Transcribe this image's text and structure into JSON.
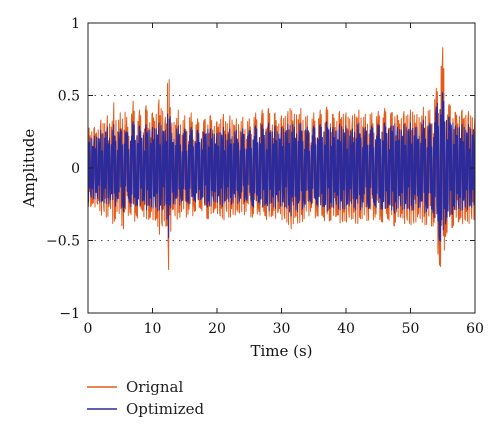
{
  "chart_data": {
    "type": "line",
    "title": "",
    "xlabel": "Time (s)",
    "ylabel": "Amplitude",
    "xlim": [
      0,
      60
    ],
    "ylim": [
      -1,
      1
    ],
    "x_ticks": [
      0,
      10,
      20,
      30,
      40,
      50,
      60
    ],
    "x_tick_labels": [
      "0",
      "10",
      "20",
      "30",
      "40",
      "50",
      "60"
    ],
    "y_ticks": [
      -1,
      -0.5,
      0,
      0.5,
      1
    ],
    "y_tick_labels": [
      "−1",
      "−0.5",
      "0",
      "0.5",
      "1"
    ],
    "grid": "dotted horizontal lines at 0.5 and -0.5",
    "legend_position": "bottom-left, below plot",
    "series": [
      {
        "name": "Orignal",
        "color": "#e35b1c",
        "x": [
          0,
          0.5,
          1,
          1.5,
          2,
          2.5,
          3,
          3.5,
          4,
          4.5,
          5,
          5.5,
          6,
          6.5,
          7,
          7.5,
          8,
          8.5,
          9,
          9.5,
          10,
          10.5,
          11,
          11.5,
          12,
          12.5,
          13,
          13.5,
          14,
          14.5,
          15,
          15.5,
          16,
          16.5,
          17,
          17.5,
          18,
          18.5,
          19,
          19.5,
          20,
          20.5,
          21,
          21.5,
          22,
          22.5,
          23,
          23.5,
          24,
          24.5,
          25,
          25.5,
          26,
          26.5,
          27,
          27.5,
          28,
          28.5,
          29,
          29.5,
          30,
          30.5,
          31,
          31.5,
          32,
          32.5,
          33,
          33.5,
          34,
          34.5,
          35,
          35.5,
          36,
          36.5,
          37,
          37.5,
          38,
          38.5,
          39,
          39.5,
          40,
          40.5,
          41,
          41.5,
          42,
          42.5,
          43,
          43.5,
          44,
          44.5,
          45,
          45.5,
          46,
          46.5,
          47,
          47.5,
          48,
          48.5,
          49,
          49.5,
          50,
          50.5,
          51,
          51.5,
          52,
          52.5,
          53,
          53.5,
          54,
          54.5,
          55,
          55.5,
          56,
          56.5,
          57,
          57.5,
          58,
          58.5,
          59,
          59.5,
          60
        ],
        "y": [
          0.3,
          -0.26,
          0.28,
          -0.25,
          0.33,
          -0.3,
          0.36,
          -0.28,
          0.45,
          -0.3,
          0.38,
          -0.42,
          0.35,
          -0.31,
          0.46,
          -0.33,
          0.4,
          -0.29,
          0.43,
          -0.34,
          0.38,
          -0.36,
          0.47,
          -0.4,
          0.35,
          -0.7,
          0.31,
          -0.33,
          0.4,
          -0.3,
          0.36,
          -0.32,
          0.38,
          -0.3,
          0.34,
          -0.28,
          0.33,
          -0.35,
          0.36,
          -0.3,
          0.32,
          -0.33,
          0.37,
          -0.3,
          0.36,
          -0.32,
          0.34,
          -0.31,
          0.35,
          -0.3,
          0.34,
          -0.34,
          0.38,
          -0.3,
          0.4,
          -0.33,
          0.41,
          -0.32,
          0.38,
          -0.3,
          0.36,
          -0.35,
          0.39,
          -0.42,
          0.37,
          -0.38,
          0.41,
          -0.35,
          0.36,
          -0.3,
          0.38,
          -0.33,
          0.4,
          -0.34,
          0.42,
          -0.36,
          0.37,
          -0.33,
          0.39,
          -0.37,
          0.38,
          -0.34,
          0.36,
          -0.38,
          0.4,
          -0.35,
          0.37,
          -0.36,
          0.38,
          -0.34,
          0.39,
          -0.37,
          0.41,
          -0.35,
          0.38,
          -0.4,
          0.36,
          -0.34,
          0.39,
          -0.36,
          0.4,
          -0.38,
          0.37,
          -0.35,
          0.42,
          -0.39,
          0.4,
          -0.4,
          0.55,
          -0.67,
          0.83,
          -0.45,
          0.44,
          -0.41,
          0.38,
          -0.37,
          0.4,
          -0.36,
          0.39,
          -0.35,
          0.36
        ]
      },
      {
        "name": "Optimized",
        "color": "#2d2a9b",
        "x": [
          0,
          0.5,
          1,
          1.5,
          2,
          2.5,
          3,
          3.5,
          4,
          4.5,
          5,
          5.5,
          6,
          6.5,
          7,
          7.5,
          8,
          8.5,
          9,
          9.5,
          10,
          10.5,
          11,
          11.5,
          12,
          12.5,
          13,
          13.5,
          14,
          14.5,
          15,
          15.5,
          16,
          16.5,
          17,
          17.5,
          18,
          18.5,
          19,
          19.5,
          20,
          20.5,
          21,
          21.5,
          22,
          22.5,
          23,
          23.5,
          24,
          24.5,
          25,
          25.5,
          26,
          26.5,
          27,
          27.5,
          28,
          28.5,
          29,
          29.5,
          30,
          30.5,
          31,
          31.5,
          32,
          32.5,
          33,
          33.5,
          34,
          34.5,
          35,
          35.5,
          36,
          36.5,
          37,
          37.5,
          38,
          38.5,
          39,
          39.5,
          40,
          40.5,
          41,
          41.5,
          42,
          42.5,
          43,
          43.5,
          44,
          44.5,
          45,
          45.5,
          46,
          46.5,
          47,
          47.5,
          48,
          48.5,
          49,
          49.5,
          50,
          50.5,
          51,
          51.5,
          52,
          52.5,
          53,
          53.5,
          54,
          54.5,
          55,
          55.5,
          56,
          56.5,
          57,
          57.5,
          58,
          58.5,
          59,
          59.5,
          60
        ],
        "y": [
          0.24,
          -0.2,
          0.22,
          -0.21,
          0.26,
          -0.24,
          0.28,
          -0.22,
          0.3,
          -0.23,
          0.27,
          -0.3,
          0.25,
          -0.24,
          0.32,
          -0.25,
          0.29,
          -0.22,
          0.3,
          -0.26,
          0.28,
          -0.27,
          0.31,
          -0.29,
          0.26,
          -0.48,
          0.24,
          -0.25,
          0.29,
          -0.23,
          0.27,
          -0.24,
          0.28,
          -0.22,
          0.26,
          -0.21,
          0.25,
          -0.27,
          0.27,
          -0.23,
          0.24,
          -0.25,
          0.28,
          -0.22,
          0.27,
          -0.24,
          0.26,
          -0.23,
          0.27,
          -0.22,
          0.26,
          -0.26,
          0.29,
          -0.23,
          0.3,
          -0.25,
          0.31,
          -0.24,
          0.29,
          -0.23,
          0.28,
          -0.27,
          0.3,
          -0.33,
          0.28,
          -0.3,
          0.31,
          -0.27,
          0.28,
          -0.23,
          0.29,
          -0.25,
          0.3,
          -0.26,
          0.32,
          -0.28,
          0.28,
          -0.25,
          0.3,
          -0.28,
          0.29,
          -0.26,
          0.27,
          -0.29,
          0.31,
          -0.27,
          0.28,
          -0.28,
          0.29,
          -0.26,
          0.3,
          -0.28,
          0.31,
          -0.27,
          0.29,
          -0.31,
          0.28,
          -0.26,
          0.3,
          -0.28,
          0.31,
          -0.29,
          0.28,
          -0.27,
          0.33,
          -0.3,
          0.31,
          -0.31,
          0.42,
          -0.5,
          0.52,
          -0.36,
          0.35,
          -0.32,
          0.29,
          -0.28,
          0.3,
          -0.27,
          0.3,
          -0.27,
          0.28
        ]
      }
    ]
  }
}
